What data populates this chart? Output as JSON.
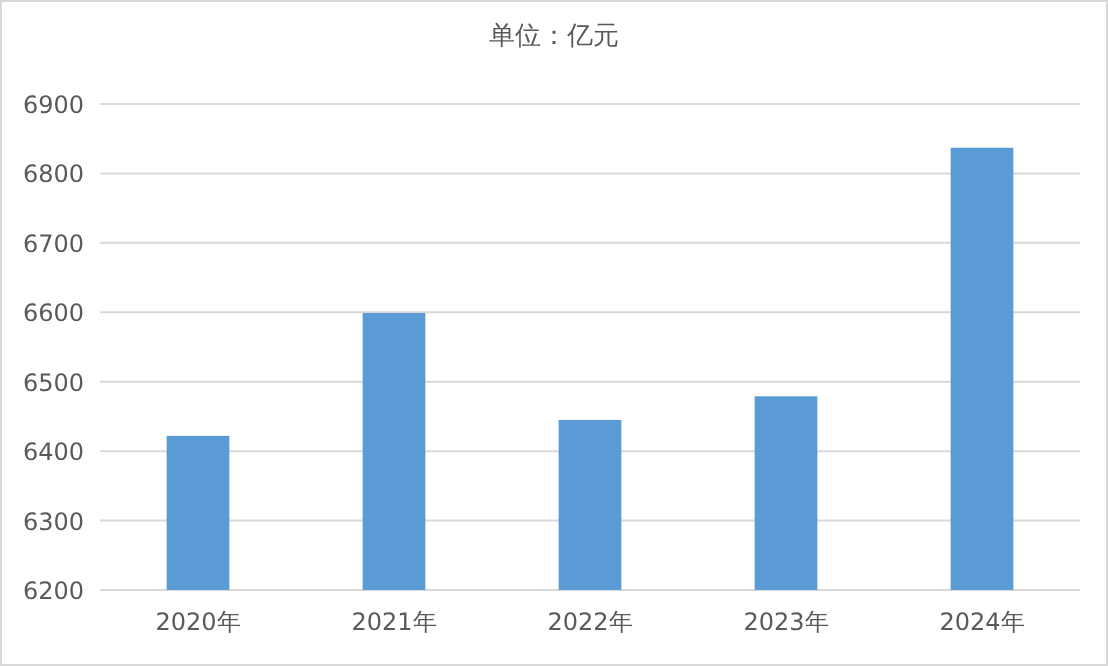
{
  "chart_data": {
    "type": "bar",
    "title": "单位：亿元",
    "categories": [
      "2020年",
      "2021年",
      "2022年",
      "2023年",
      "2024年"
    ],
    "values": [
      6422,
      6599,
      6445,
      6479,
      6837
    ],
    "color": "#5b9bd5",
    "ylim": [
      6200,
      6900
    ],
    "yticks": [
      6200,
      6300,
      6400,
      6500,
      6600,
      6700,
      6800,
      6900
    ],
    "grid": "y"
  }
}
